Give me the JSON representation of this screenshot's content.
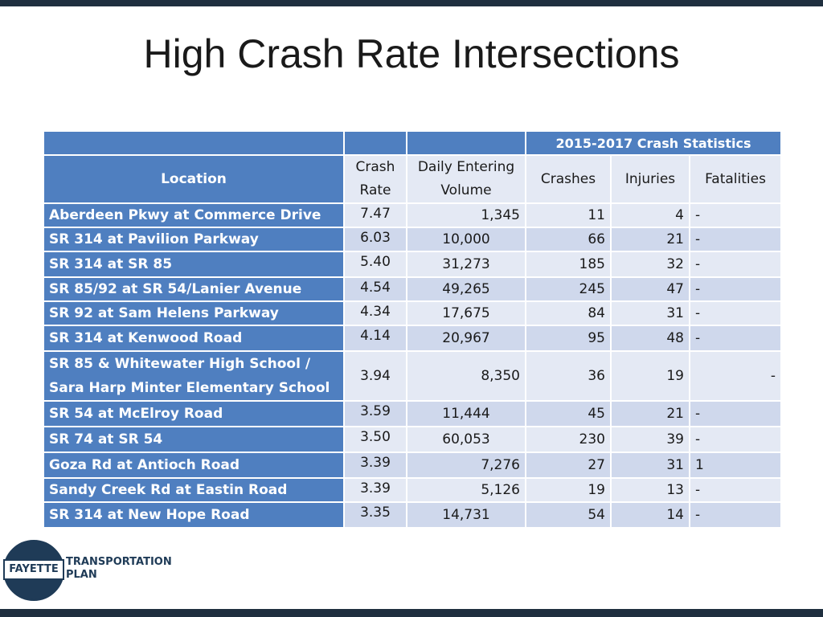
{
  "slide": {
    "title": "High Crash Rate Intersections"
  },
  "table": {
    "super_header": "2015-2017 Crash Statistics",
    "headers": {
      "location": "Location",
      "crash_rate_line1": "Crash",
      "crash_rate_line2": "Rate",
      "volume_line1": "Daily Entering",
      "volume_line2": "Volume",
      "crashes": "Crashes",
      "injuries": "Injuries",
      "fatalities": "Fatalities"
    },
    "rows": [
      {
        "loc1": "Aberdeen Pkwy at Commerce Drive",
        "loc2": "",
        "rate": "7.47",
        "volume": "1,345",
        "crashes": "11",
        "injuries": "4",
        "fatalities": "-"
      },
      {
        "loc1": "SR 314 at Pavilion Parkway",
        "loc2": "",
        "rate": "6.03",
        "volume": "10,000",
        "crashes": "66",
        "injuries": "21",
        "fatalities": "-"
      },
      {
        "loc1": "SR 314 at SR 85",
        "loc2": "",
        "rate": "5.40",
        "volume": "31,273",
        "crashes": "185",
        "injuries": "32",
        "fatalities": "-"
      },
      {
        "loc1": "SR 85/92 at SR 54/Lanier Avenue",
        "loc2": "",
        "rate": "4.54",
        "volume": "49,265",
        "crashes": "245",
        "injuries": "47",
        "fatalities": "-"
      },
      {
        "loc1": "SR 92 at Sam Helens Parkway",
        "loc2": "",
        "rate": "4.34",
        "volume": "17,675",
        "crashes": "84",
        "injuries": "31",
        "fatalities": "-"
      },
      {
        "loc1": "SR 314 at Kenwood Road",
        "loc2": "",
        "rate": "4.14",
        "volume": "20,967",
        "crashes": "95",
        "injuries": "48",
        "fatalities": "-"
      },
      {
        "loc1": "SR 85 & Whitewater High School /",
        "loc2": "Sara Harp Minter Elementary School",
        "rate": "3.94",
        "volume": "8,350",
        "crashes": "36",
        "injuries": "19",
        "fatalities": "-"
      },
      {
        "loc1": "SR 54 at McElroy Road",
        "loc2": "",
        "rate": "3.59",
        "volume": "11,444",
        "crashes": "45",
        "injuries": "21",
        "fatalities": "-"
      },
      {
        "loc1": "SR 74 at SR 54",
        "loc2": "",
        "rate": "3.50",
        "volume": "60,053",
        "crashes": "230",
        "injuries": "39",
        "fatalities": "-"
      },
      {
        "loc1": "Goza Rd at Antioch Road",
        "loc2": "",
        "rate": "3.39",
        "volume": "7,276",
        "crashes": "27",
        "injuries": "31",
        "fatalities": "1"
      },
      {
        "loc1": "Sandy Creek Rd at Eastin Road",
        "loc2": "",
        "rate": "3.39",
        "volume": "5,126",
        "crashes": "19",
        "injuries": "13",
        "fatalities": "-"
      },
      {
        "loc1": "SR 314 at New Hope Road",
        "loc2": "",
        "rate": "3.35",
        "volume": "14,731",
        "crashes": "54",
        "injuries": "14",
        "fatalities": "-"
      }
    ]
  },
  "logo": {
    "badge": "FAYETTE",
    "line1": "TRANSPORTATION",
    "line2": "PLAN"
  },
  "colors": {
    "header_blue": "#4f7fc0",
    "row_light": "#e4e9f4",
    "row_dark": "#cfd8ec",
    "frame_dark": "#1f2f3f"
  }
}
